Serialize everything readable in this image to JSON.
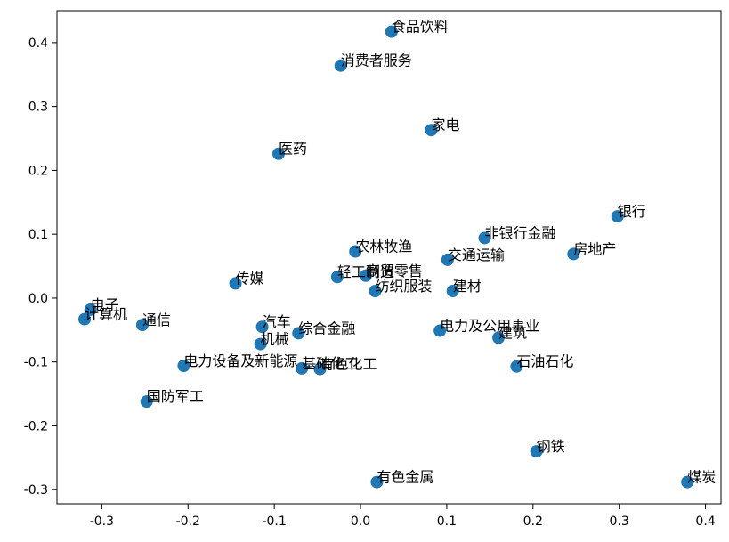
{
  "chart_data": {
    "type": "scatter",
    "title": "",
    "xlabel": "",
    "ylabel": "",
    "xlim": [
      -0.352,
      0.418
    ],
    "ylim": [
      -0.322,
      0.45
    ],
    "grid": false,
    "legend": "none",
    "marker_color": "#1f77b4",
    "x_ticks": [
      {
        "value": -0.3,
        "label": "-0.3"
      },
      {
        "value": -0.2,
        "label": "-0.2"
      },
      {
        "value": -0.1,
        "label": "-0.1"
      },
      {
        "value": 0.0,
        "label": "0.0"
      },
      {
        "value": 0.1,
        "label": "0.1"
      },
      {
        "value": 0.2,
        "label": "0.2"
      },
      {
        "value": 0.3,
        "label": "0.3"
      },
      {
        "value": 0.4,
        "label": "0.4"
      }
    ],
    "y_ticks": [
      {
        "value": -0.3,
        "label": "-0.3"
      },
      {
        "value": -0.2,
        "label": "-0.2"
      },
      {
        "value": -0.1,
        "label": "-0.1"
      },
      {
        "value": 0.0,
        "label": "0.0"
      },
      {
        "value": 0.1,
        "label": "0.1"
      },
      {
        "value": 0.2,
        "label": "0.2"
      },
      {
        "value": 0.3,
        "label": "0.3"
      },
      {
        "value": 0.4,
        "label": "0.4"
      }
    ],
    "points": [
      {
        "label": "食品饮料",
        "x": 0.036,
        "y": 0.417
      },
      {
        "label": "消费者服务",
        "x": -0.023,
        "y": 0.364
      },
      {
        "label": "家电",
        "x": 0.082,
        "y": 0.263
      },
      {
        "label": "医药",
        "x": -0.095,
        "y": 0.226
      },
      {
        "label": "银行",
        "x": 0.298,
        "y": 0.128
      },
      {
        "label": "非银行金融",
        "x": 0.144,
        "y": 0.094
      },
      {
        "label": "房地产",
        "x": 0.247,
        "y": 0.069
      },
      {
        "label": "农林牧渔",
        "x": -0.006,
        "y": 0.073
      },
      {
        "label": "交通运输",
        "x": 0.101,
        "y": 0.06
      },
      {
        "label": "轻工制造",
        "x": -0.027,
        "y": 0.033
      },
      {
        "label": "商贸零售",
        "x": 0.006,
        "y": 0.035
      },
      {
        "label": "纺织服装",
        "x": 0.017,
        "y": 0.011
      },
      {
        "label": "建材",
        "x": 0.107,
        "y": 0.011
      },
      {
        "label": "传媒",
        "x": -0.145,
        "y": 0.023
      },
      {
        "label": "电子",
        "x": -0.313,
        "y": -0.018
      },
      {
        "label": "计算机",
        "x": -0.32,
        "y": -0.033
      },
      {
        "label": "通信",
        "x": -0.253,
        "y": -0.042
      },
      {
        "label": "汽车",
        "x": -0.114,
        "y": -0.045
      },
      {
        "label": "综合金融",
        "x": -0.072,
        "y": -0.055
      },
      {
        "label": "电力及公用事业",
        "x": 0.092,
        "y": -0.051
      },
      {
        "label": "建筑",
        "x": 0.16,
        "y": -0.062
      },
      {
        "label": "机械",
        "x": -0.116,
        "y": -0.072
      },
      {
        "label": "电力设备及新能源",
        "x": -0.205,
        "y": -0.106
      },
      {
        "label": "基础化工",
        "x": -0.068,
        "y": -0.11
      },
      {
        "label": "有色化工",
        "x": -0.047,
        "y": -0.111
      },
      {
        "label": "石油石化",
        "x": 0.181,
        "y": -0.107
      },
      {
        "label": "国防军工",
        "x": -0.248,
        "y": -0.162
      },
      {
        "label": "钢铁",
        "x": 0.204,
        "y": -0.24
      },
      {
        "label": "有色金属",
        "x": 0.019,
        "y": -0.288
      },
      {
        "label": "煤炭",
        "x": 0.379,
        "y": -0.288
      }
    ]
  }
}
